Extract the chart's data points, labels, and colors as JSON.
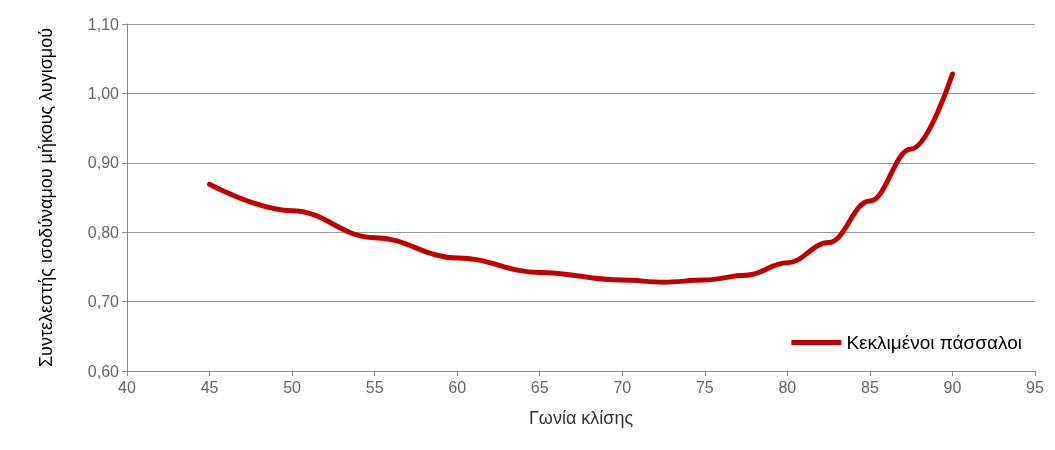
{
  "chart_data": {
    "type": "line",
    "xlabel": "Γωνία κλίσης",
    "ylabel": "Συντελεστής ισοδύναμου μήκους λυγισμού",
    "x": [
      45,
      50,
      55,
      60,
      65,
      70,
      72.5,
      75,
      77.5,
      80,
      82.5,
      85,
      87.5,
      90
    ],
    "series": [
      {
        "name": "Κεκλιμένοι πάσσαλοι",
        "color": "#c00000",
        "values": [
          0.869,
          0.831,
          0.792,
          0.763,
          0.742,
          0.731,
          0.728,
          0.731,
          0.738,
          0.756,
          0.785,
          0.845,
          0.92,
          1.028
        ]
      }
    ],
    "xlim": [
      40,
      95
    ],
    "xticks": [
      40,
      45,
      50,
      55,
      60,
      65,
      70,
      75,
      80,
      85,
      90,
      95
    ],
    "ylim": [
      0.6,
      1.1
    ],
    "yticks": [
      {
        "value": 0.6,
        "label": "0,60"
      },
      {
        "value": 0.7,
        "label": "0,70"
      },
      {
        "value": 0.8,
        "label": "0,80"
      },
      {
        "value": 0.9,
        "label": "0,90"
      },
      {
        "value": 1.0,
        "label": "1,00"
      },
      {
        "value": 1.1,
        "label": "1,10"
      }
    ],
    "grid": "y",
    "legend": "bottom right",
    "marker": "none",
    "line_style": "solid"
  }
}
